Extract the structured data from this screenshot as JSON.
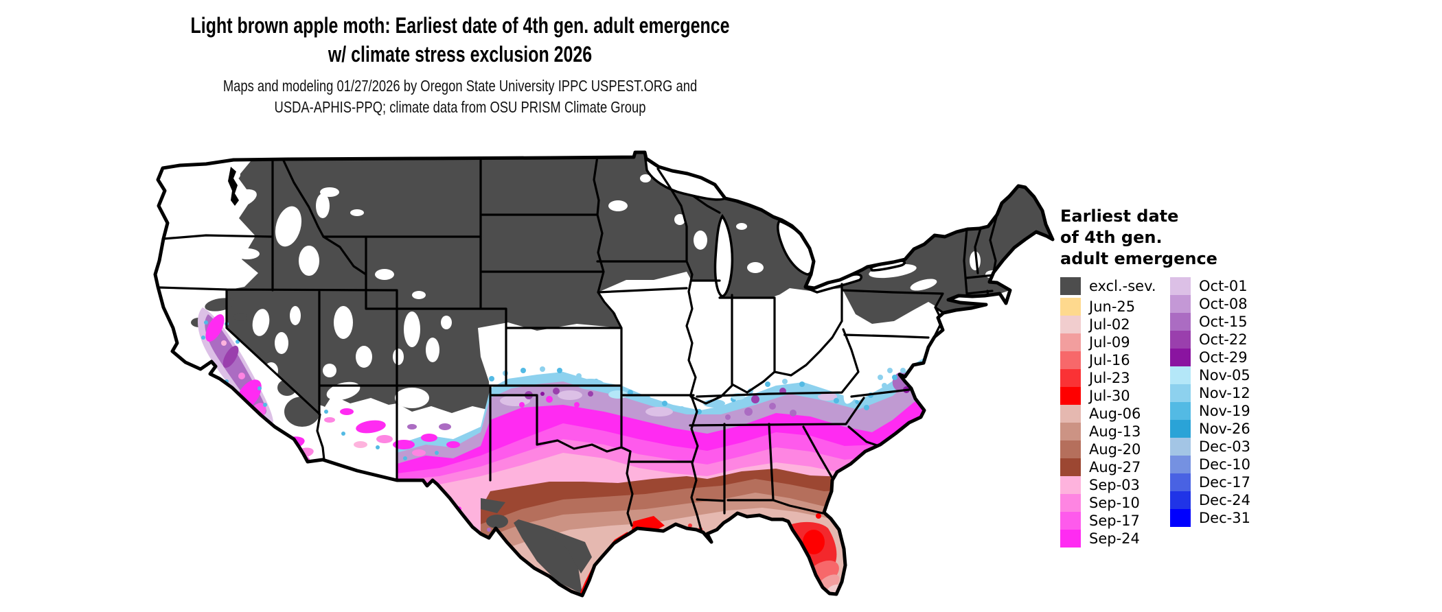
{
  "title": {
    "line1": "Light brown apple moth: Earliest date of 4th gen. adult emergence",
    "line2": "w/ climate stress exclusion 2026"
  },
  "subtitle": {
    "line1": "Maps and modeling 01/27/2026 by Oregon State University IPPC USPEST.ORG and",
    "line2": "USDA-APHIS-PPQ; climate data from OSU PRISM Climate Group"
  },
  "map": {
    "area": "Continental United States",
    "excluded_color": "#4d4d4d"
  },
  "legend": {
    "title_lines": [
      "Earliest date",
      "of 4th gen.",
      "adult emergence"
    ],
    "columns": [
      [
        {
          "label": "excl.-sev.",
          "color": "#4d4d4d"
        },
        {
          "label": "Jun-25",
          "color": "#fed98e"
        },
        {
          "label": "Jul-02",
          "color": "#f1cdce"
        },
        {
          "label": "Jul-09",
          "color": "#f29e9e"
        },
        {
          "label": "Jul-16",
          "color": "#f7686a"
        },
        {
          "label": "Jul-23",
          "color": "#fa3235"
        },
        {
          "label": "Jul-30",
          "color": "#fe0000"
        },
        {
          "label": "Aug-06",
          "color": "#e5b8b0"
        },
        {
          "label": "Aug-13",
          "color": "#cc9384"
        },
        {
          "label": "Aug-20",
          "color": "#b56f5c"
        },
        {
          "label": "Aug-27",
          "color": "#9c4732"
        },
        {
          "label": "Sep-03",
          "color": "#feb3dd"
        },
        {
          "label": "Sep-10",
          "color": "#fe85e2"
        },
        {
          "label": "Sep-17",
          "color": "#fe5aec"
        },
        {
          "label": "Sep-24",
          "color": "#ff2bf2"
        }
      ],
      [
        {
          "label": "Oct-01",
          "color": "#dcc0e6"
        },
        {
          "label": "Oct-08",
          "color": "#c498d6"
        },
        {
          "label": "Oct-15",
          "color": "#ab6cc2"
        },
        {
          "label": "Oct-22",
          "color": "#9a3fad"
        },
        {
          "label": "Oct-29",
          "color": "#8a14a0"
        },
        {
          "label": "Nov-05",
          "color": "#b4e7f8"
        },
        {
          "label": "Nov-12",
          "color": "#8dd1ee"
        },
        {
          "label": "Nov-19",
          "color": "#53bae4"
        },
        {
          "label": "Nov-26",
          "color": "#2aa3d7"
        },
        {
          "label": "Dec-03",
          "color": "#a3c5e5"
        },
        {
          "label": "Dec-10",
          "color": "#7591e1"
        },
        {
          "label": "Dec-17",
          "color": "#4962e3"
        },
        {
          "label": "Dec-24",
          "color": "#2034e7"
        },
        {
          "label": "Dec-31",
          "color": "#0000fe"
        }
      ]
    ]
  }
}
